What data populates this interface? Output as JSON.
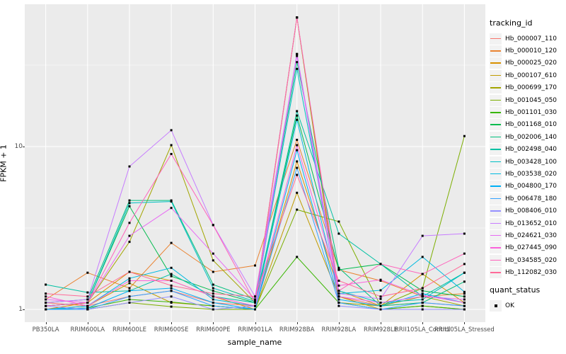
{
  "figure": {
    "background": "#FFFFFF",
    "panel_background": "#EBEBEB",
    "grid_color": "#FFFFFF",
    "tick_color": "#333333",
    "tick_label_color": "#4D4D4D",
    "point_color": "#000000"
  },
  "axes": {
    "y_title": "FPKM + 1",
    "x_title": "sample_name"
  },
  "legend": {
    "tracking_title": "tracking_id",
    "quant_title": "quant_status",
    "quant_items": [
      {
        "label": "OK",
        "marker": "black-square-point"
      }
    ]
  },
  "chart_data": {
    "type": "line",
    "title": "",
    "xlabel": "sample_name",
    "ylabel": "FPKM + 1",
    "y_scale": "log10",
    "ylim": [
      0.93,
      72
    ],
    "y_major_ticks": [
      1,
      10
    ],
    "y_minor_gridlines": [
      3.162,
      31.62
    ],
    "grid": true,
    "legend_position": "right",
    "point_marker": "small-black-square (quant_status OK)",
    "categories": [
      "PB350LA",
      "RRIM600LA",
      "RRIM600LE",
      "RRIM600SE",
      "RRIM600PE",
      "RRIM901LA",
      "RRIM928BA",
      "RRIM928LA",
      "RRIM928LE",
      "RRII105LA_Control",
      "RRII105LA_Stressed"
    ],
    "series": [
      {
        "name": "Hb_000007_110",
        "color": "#F8766D",
        "values": [
          1.1,
          1.05,
          1.2,
          1.3,
          1.1,
          1.05,
          62.0,
          1.2,
          1.05,
          1.1,
          1.05
        ]
      },
      {
        "name": "Hb_000010_120",
        "color": "#EA8331",
        "values": [
          1.15,
          1.68,
          1.35,
          2.56,
          1.7,
          1.86,
          11.0,
          1.75,
          1.5,
          1.2,
          1.25
        ]
      },
      {
        "name": "Hb_000025_020",
        "color": "#D89000",
        "values": [
          1.0,
          1.1,
          1.7,
          1.5,
          1.2,
          1.0,
          8.1,
          1.3,
          1.05,
          1.65,
          1.1
        ]
      },
      {
        "name": "Hb_000107_610",
        "color": "#C09B00",
        "values": [
          1.0,
          1.05,
          1.45,
          1.1,
          1.05,
          1.0,
          5.2,
          1.2,
          1.0,
          1.05,
          1.0
        ]
      },
      {
        "name": "Hb_000699_170",
        "color": "#A3A500",
        "values": [
          1.05,
          1.1,
          2.6,
          10.2,
          2.0,
          1.1,
          62.0,
          1.1,
          1.05,
          1.2,
          1.05
        ]
      },
      {
        "name": "Hb_001045_050",
        "color": "#7CAE00",
        "values": [
          1.0,
          1.0,
          1.1,
          1.04,
          1.0,
          1.0,
          4.1,
          3.46,
          1.05,
          1.35,
          11.6
        ]
      },
      {
        "name": "Hb_001101_030",
        "color": "#39B600",
        "values": [
          1.0,
          1.02,
          1.15,
          1.11,
          1.05,
          1.0,
          2.1,
          1.1,
          1.0,
          1.05,
          1.0
        ]
      },
      {
        "name": "Hb_001168_010",
        "color": "#00BB4E",
        "values": [
          1.05,
          1.1,
          4.3,
          1.6,
          1.3,
          1.1,
          15.5,
          1.75,
          1.9,
          1.3,
          1.2
        ]
      },
      {
        "name": "Hb_002006_140",
        "color": "#00BF7D",
        "values": [
          1.1,
          1.15,
          4.67,
          4.67,
          1.42,
          1.15,
          33.0,
          1.8,
          1.05,
          1.1,
          1.48
        ]
      },
      {
        "name": "Hb_002498_040",
        "color": "#00C1A3",
        "values": [
          1.42,
          1.27,
          1.3,
          1.65,
          1.2,
          1.1,
          16.5,
          2.92,
          1.9,
          1.2,
          1.68
        ]
      },
      {
        "name": "Hb_003428_100",
        "color": "#00BFC4",
        "values": [
          1.05,
          1.1,
          4.5,
          4.6,
          1.35,
          1.12,
          30.0,
          1.3,
          1.1,
          1.15,
          1.68
        ]
      },
      {
        "name": "Hb_003538_020",
        "color": "#00BAE0",
        "values": [
          1.0,
          1.05,
          1.55,
          1.8,
          1.15,
          1.05,
          14.6,
          1.25,
          1.31,
          2.1,
          1.28
        ]
      },
      {
        "name": "Hb_004800_170",
        "color": "#00B0F6",
        "values": [
          1.0,
          1.02,
          1.3,
          1.35,
          1.1,
          1.0,
          9.5,
          1.15,
          1.05,
          1.25,
          1.1
        ]
      },
      {
        "name": "Hb_006478_180",
        "color": "#35A2FF",
        "values": [
          1.0,
          1.0,
          1.2,
          1.3,
          1.05,
          1.0,
          7.4,
          1.1,
          1.0,
          1.1,
          1.05
        ]
      },
      {
        "name": "Hb_008406_010",
        "color": "#9590FF",
        "values": [
          1.05,
          1.0,
          1.1,
          1.2,
          1.0,
          1.05,
          37.0,
          1.05,
          1.0,
          1.0,
          1.0
        ]
      },
      {
        "name": "Hb_013652_010",
        "color": "#C77CFF",
        "values": [
          1.1,
          1.15,
          7.55,
          12.6,
          3.3,
          1.2,
          37.0,
          1.25,
          1.16,
          2.83,
          2.92
        ]
      },
      {
        "name": "Hb_024621_030",
        "color": "#E76BF3",
        "values": [
          1.15,
          1.1,
          2.83,
          4.2,
          2.2,
          1.15,
          36.0,
          1.2,
          1.1,
          1.2,
          1.15
        ]
      },
      {
        "name": "Hb_027445_090",
        "color": "#FA62DB",
        "values": [
          1.2,
          1.05,
          1.5,
          1.5,
          1.2,
          1.05,
          10.2,
          1.4,
          1.52,
          1.22,
          1.1
        ]
      },
      {
        "name": "Hb_034585_020",
        "color": "#FF62BC",
        "values": [
          1.05,
          1.1,
          3.4,
          9.0,
          3.29,
          1.1,
          62.0,
          1.3,
          1.9,
          1.65,
          2.2
        ]
      },
      {
        "name": "Hb_112082_030",
        "color": "#FF6A98",
        "values": [
          1.25,
          1.2,
          1.7,
          1.4,
          1.25,
          1.2,
          6.7,
          1.5,
          1.2,
          1.35,
          1.9
        ]
      }
    ]
  }
}
